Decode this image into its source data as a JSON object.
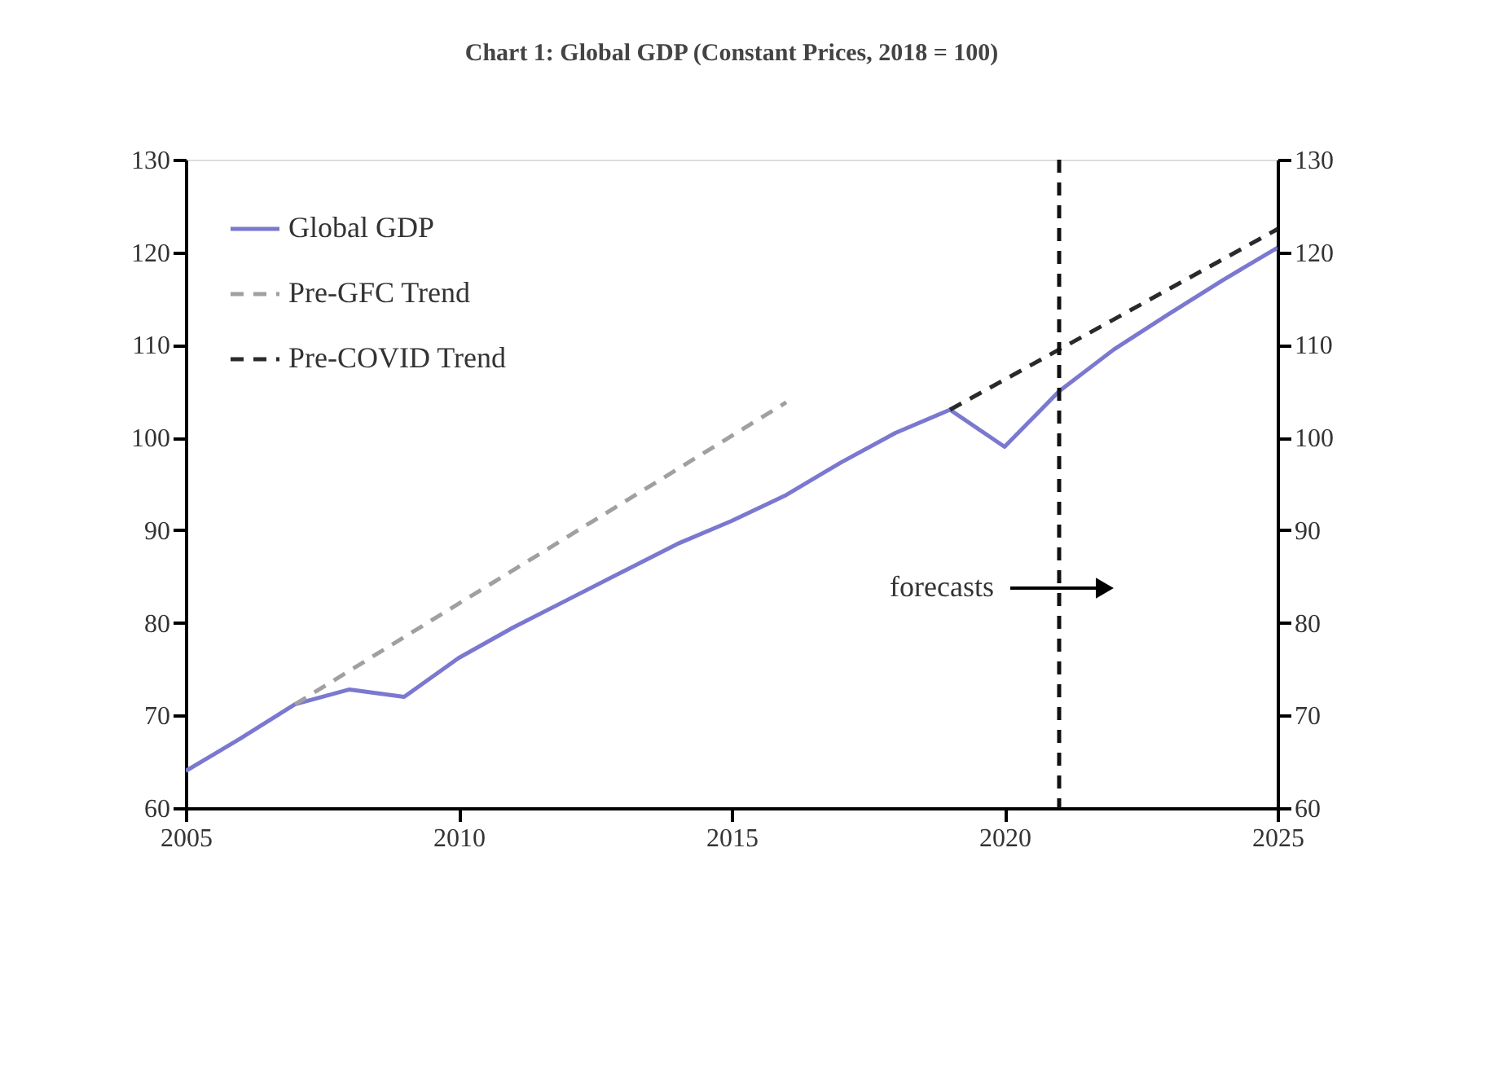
{
  "chart_data": {
    "type": "line",
    "title": "Chart 1: Global GDP (Constant Prices, 2018 = 100)",
    "x": [
      2005,
      2006,
      2007,
      2008,
      2009,
      2010,
      2011,
      2012,
      2013,
      2014,
      2015,
      2016,
      2017,
      2018,
      2019,
      2020,
      2021,
      2022,
      2023,
      2024,
      2025
    ],
    "series": [
      {
        "name": "Global GDP",
        "color": "#7b78d0",
        "line_style": "solid",
        "values": [
          64,
          67.5,
          71.2,
          72.8,
          72,
          76.2,
          79.5,
          82.5,
          85.5,
          88.5,
          91,
          93.8,
          97.3,
          100.5,
          103,
          99,
          105,
          109.5,
          113.3,
          117,
          120.5
        ]
      },
      {
        "name": "Pre-GFC Trend",
        "color": "#a0a0a0",
        "line_style": "dashed",
        "x": [
          2007,
          2016
        ],
        "values": [
          71.2,
          103.8
        ]
      },
      {
        "name": "Pre-COVID Trend",
        "color": "#2a2a2a",
        "line_style": "dashed",
        "x": [
          2019,
          2025
        ],
        "values": [
          103,
          122.5
        ]
      }
    ],
    "xlim": [
      2005,
      2025
    ],
    "xticks": [
      2005,
      2010,
      2015,
      2020,
      2025
    ],
    "ylim": [
      60,
      130
    ],
    "yticks": [
      60,
      70,
      80,
      90,
      100,
      110,
      120,
      130
    ],
    "y2lim": [
      60,
      130
    ],
    "y2ticks": [
      60,
      70,
      80,
      90,
      100,
      110,
      120,
      130
    ],
    "ref_lines": [
      {
        "axis": "x",
        "value": 2021,
        "color": "#111111",
        "line_style": "dashed"
      }
    ],
    "annotations": [
      "forecasts"
    ],
    "legend": "top left",
    "grid": false,
    "marker": "none"
  }
}
